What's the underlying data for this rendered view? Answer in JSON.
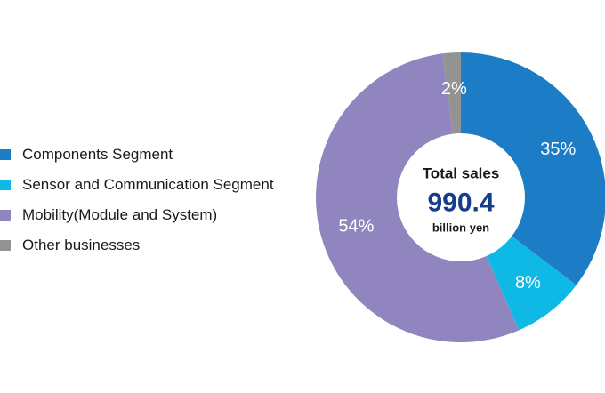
{
  "chart_data": {
    "type": "pie",
    "donut": true,
    "title": "",
    "legend_position": "left",
    "series": [
      {
        "name": "",
        "values": [
          35,
          8,
          54,
          2
        ],
        "labels": [
          "35%",
          "8%",
          "54%",
          "2%"
        ]
      }
    ],
    "categories": [
      "Components Segment",
      "Sensor and Communication Segment",
      "Mobility(Module and System)",
      "Other businesses"
    ],
    "colors": [
      "#1c7cc5",
      "#0fb9e6",
      "#9085be",
      "#939393"
    ],
    "center": {
      "title": "Total sales",
      "value": "990.4",
      "unit": "billion yen",
      "value_color": "#163c8c"
    }
  }
}
